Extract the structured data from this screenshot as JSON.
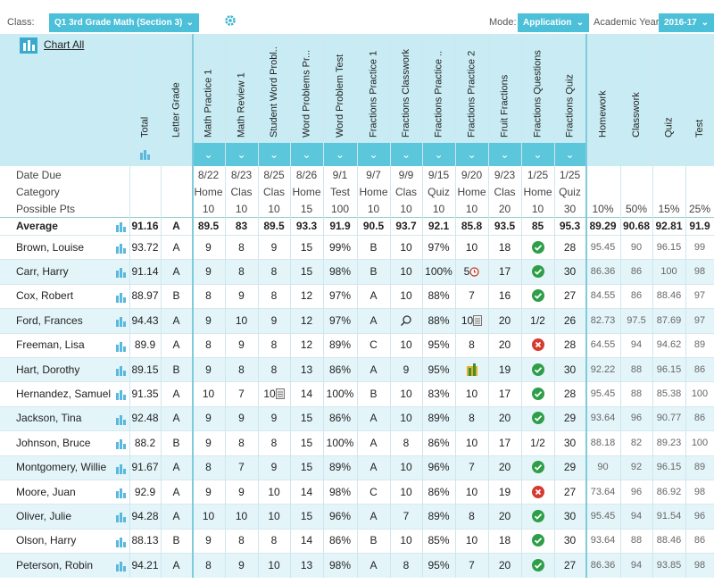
{
  "header": {
    "class_label": "Class:",
    "class_value": "Q1 3rd Grade Math (Section 3)",
    "mode_label": "Mode:",
    "mode_value": "Application",
    "year_label": "Academic Year:",
    "year_value": "2016-17"
  },
  "chart_all": "Chart All",
  "columns": {
    "total": "Total",
    "letter_grade": "Letter Grade",
    "assignments": [
      "Math Practice 1",
      "Math Review 1",
      "Student Word Probl..",
      "Word Problems Pr...",
      "Word Problem Test",
      "Fractions Practice 1",
      "Fractions Classwork",
      "Fractions Practice ..",
      "Fractions Practice 2",
      "Fruit Fractions",
      "Fractions Questions",
      "Fractions Quiz"
    ],
    "categories": [
      "Homework",
      "Classwork",
      "Quiz",
      "Test"
    ]
  },
  "info_rows": [
    {
      "label": "Date Due",
      "cells": [
        "8/22",
        "8/23",
        "8/25",
        "8/26",
        "9/1",
        "9/7",
        "9/9",
        "9/15",
        "9/20",
        "9/23",
        "1/25",
        "1/25"
      ]
    },
    {
      "label": "Category",
      "cells": [
        "Home",
        "Clas",
        "Clas",
        "Home",
        "Test",
        "Home",
        "Clas",
        "Quiz",
        "Home",
        "Clas",
        "Home",
        "Quiz"
      ]
    },
    {
      "label": "Possible Pts",
      "cells": [
        "10",
        "10",
        "10",
        "15",
        "100",
        "10",
        "10",
        "10",
        "10",
        "20",
        "10",
        "30",
        "10%",
        "50%",
        "15%",
        "25%"
      ]
    }
  ],
  "average": {
    "label": "Average",
    "total": "91.16",
    "grade": "A",
    "cells": [
      "89.5",
      "83",
      "89.5",
      "93.3",
      "91.9",
      "90.5",
      "93.7",
      "92.1",
      "85.8",
      "93.5",
      "85",
      "95.3",
      "89.29",
      "90.68",
      "92.81",
      "91.9"
    ]
  },
  "students": [
    {
      "name": "Brown, Louise",
      "total": "93.72",
      "grade": "A",
      "cells": [
        "9",
        "8",
        "9",
        "15",
        "99%",
        "B",
        "10",
        "97%",
        "10",
        "18",
        {
          "icon": "check"
        },
        "28",
        "95.45",
        "90",
        "96.15",
        "99"
      ]
    },
    {
      "name": "Carr, Harry",
      "total": "91.14",
      "grade": "A",
      "cells": [
        "9",
        "8",
        "8",
        "15",
        "98%",
        "B",
        "10",
        "100%",
        {
          "text": "5",
          "icon": "clock"
        },
        "17",
        {
          "icon": "check"
        },
        "30",
        "86.36",
        "86",
        "100",
        "98"
      ]
    },
    {
      "name": "Cox, Robert",
      "total": "88.97",
      "grade": "B",
      "cells": [
        "8",
        "9",
        "8",
        "12",
        "97%",
        "A",
        "10",
        "88%",
        "7",
        "16",
        {
          "icon": "check"
        },
        "27",
        "84.55",
        "86",
        "88.46",
        "97"
      ]
    },
    {
      "name": "Ford, Frances",
      "total": "94.43",
      "grade": "A",
      "cells": [
        "9",
        "10",
        "9",
        "12",
        "97%",
        "A",
        {
          "icon": "search"
        },
        "88%",
        {
          "text": "10",
          "icon": "note"
        },
        "20",
        "1/2",
        "26",
        "82.73",
        "97.5",
        "87.69",
        "97"
      ]
    },
    {
      "name": "Freeman, Lisa",
      "total": "89.9",
      "grade": "A",
      "cells": [
        "8",
        "9",
        "8",
        "12",
        "89%",
        "C",
        "10",
        "95%",
        "8",
        "20",
        {
          "icon": "cross"
        },
        "28",
        "64.55",
        "94",
        "94.62",
        "89"
      ]
    },
    {
      "name": "Hart, Dorothy",
      "total": "89.15",
      "grade": "B",
      "cells": [
        "9",
        "8",
        "8",
        "13",
        "86%",
        "A",
        "9",
        "95%",
        {
          "icon": "bars"
        },
        "19",
        {
          "icon": "check"
        },
        "30",
        "92.22",
        "88",
        "96.15",
        "86"
      ]
    },
    {
      "name": "Hernandez, Samuel",
      "total": "91.35",
      "grade": "A",
      "cells": [
        "10",
        "7",
        {
          "text": "10",
          "icon": "note"
        },
        "14",
        "100%",
        "B",
        "10",
        "83%",
        "10",
        "17",
        {
          "icon": "check"
        },
        "28",
        "95.45",
        "88",
        "85.38",
        "100"
      ]
    },
    {
      "name": "Jackson, Tina",
      "total": "92.48",
      "grade": "A",
      "cells": [
        "9",
        "9",
        "9",
        "15",
        "86%",
        "A",
        "10",
        "89%",
        "8",
        "20",
        {
          "icon": "check"
        },
        "29",
        "93.64",
        "96",
        "90.77",
        "86"
      ]
    },
    {
      "name": "Johnson, Bruce",
      "total": "88.2",
      "grade": "B",
      "cells": [
        "9",
        "8",
        "8",
        "15",
        "100%",
        "A",
        "8",
        "86%",
        "10",
        "17",
        "1/2",
        "30",
        "88.18",
        "82",
        "89.23",
        "100"
      ]
    },
    {
      "name": "Montgomery, Willie",
      "total": "91.67",
      "grade": "A",
      "cells": [
        "8",
        "7",
        "9",
        "15",
        "89%",
        "A",
        "10",
        "96%",
        "7",
        "20",
        {
          "icon": "check"
        },
        "29",
        "90",
        "92",
        "96.15",
        "89"
      ]
    },
    {
      "name": "Moore, Juan",
      "total": "92.9",
      "grade": "A",
      "cells": [
        "9",
        "9",
        "10",
        "14",
        "98%",
        "C",
        "10",
        "86%",
        "10",
        "19",
        {
          "icon": "cross"
        },
        "27",
        "73.64",
        "96",
        "86.92",
        "98"
      ]
    },
    {
      "name": "Oliver, Julie",
      "total": "94.28",
      "grade": "A",
      "cells": [
        "10",
        "10",
        "10",
        "15",
        "96%",
        "A",
        "7",
        "89%",
        "8",
        "20",
        {
          "icon": "check"
        },
        "30",
        "95.45",
        "94",
        "91.54",
        "96"
      ]
    },
    {
      "name": "Olson, Harry",
      "total": "88.13",
      "grade": "B",
      "cells": [
        "9",
        "8",
        "8",
        "14",
        "86%",
        "B",
        "10",
        "85%",
        "10",
        "18",
        {
          "icon": "check"
        },
        "30",
        "93.64",
        "88",
        "88.46",
        "86"
      ]
    },
    {
      "name": "Peterson, Robin",
      "total": "94.21",
      "grade": "A",
      "cells": [
        "8",
        "9",
        "10",
        "13",
        "98%",
        "A",
        "8",
        "95%",
        "7",
        "20",
        {
          "icon": "check"
        },
        "27",
        "86.36",
        "94",
        "93.85",
        "98"
      ]
    }
  ]
}
